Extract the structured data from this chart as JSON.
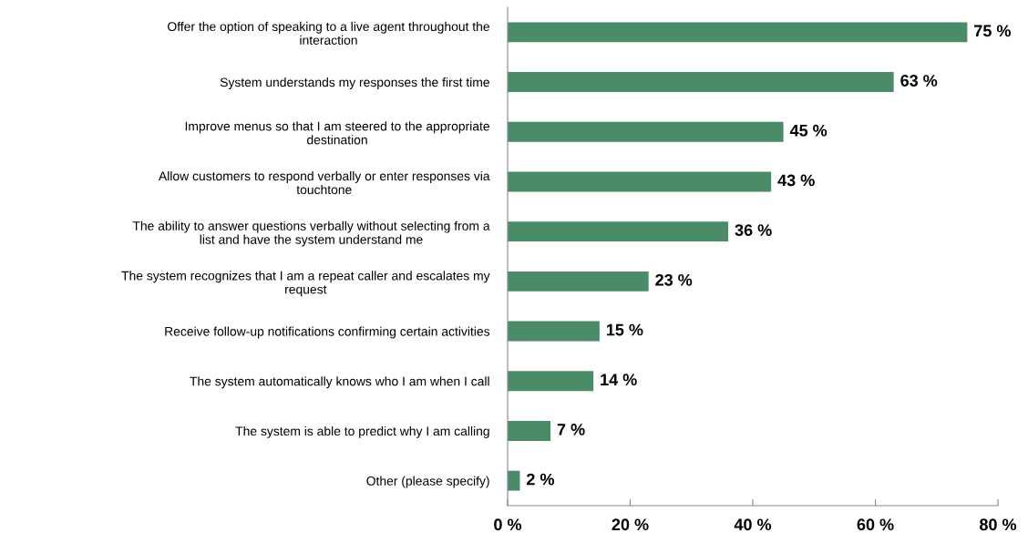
{
  "chart_data": {
    "type": "bar",
    "orientation": "horizontal",
    "categories": [
      "Offer the option of speaking to a live agent throughout the\ninteraction",
      "System understands my responses the first time",
      "Improve menus so that I am steered to the appropriate\ndestination",
      "Allow customers to respond verbally or enter responses via\ntouchtone",
      "The ability to answer questions verbally without selecting from a\nlist and have the system understand me",
      "The system recognizes that I am a repeat caller and escalates my\nrequest",
      "Receive follow-up notifications confirming certain activities",
      "The system automatically knows who I am when I call",
      "The system is able to predict why I am calling",
      "Other (please specify)"
    ],
    "values": [
      75,
      63,
      45,
      43,
      36,
      23,
      15,
      14,
      7,
      2
    ],
    "value_labels": [
      "75 %",
      "63 %",
      "45 %",
      "43 %",
      "36 %",
      "23 %",
      "15 %",
      "14 %",
      "7 %",
      "2 %"
    ],
    "color": "#4a8c67",
    "xlim": [
      0,
      80
    ],
    "xticks": [
      {
        "value": 0,
        "label": "0 %"
      },
      {
        "value": 20,
        "label": "20 %"
      },
      {
        "value": 40,
        "label": "40 %"
      },
      {
        "value": 60,
        "label": "60 %"
      },
      {
        "value": 80,
        "label": "80 %"
      }
    ],
    "grid": false
  }
}
